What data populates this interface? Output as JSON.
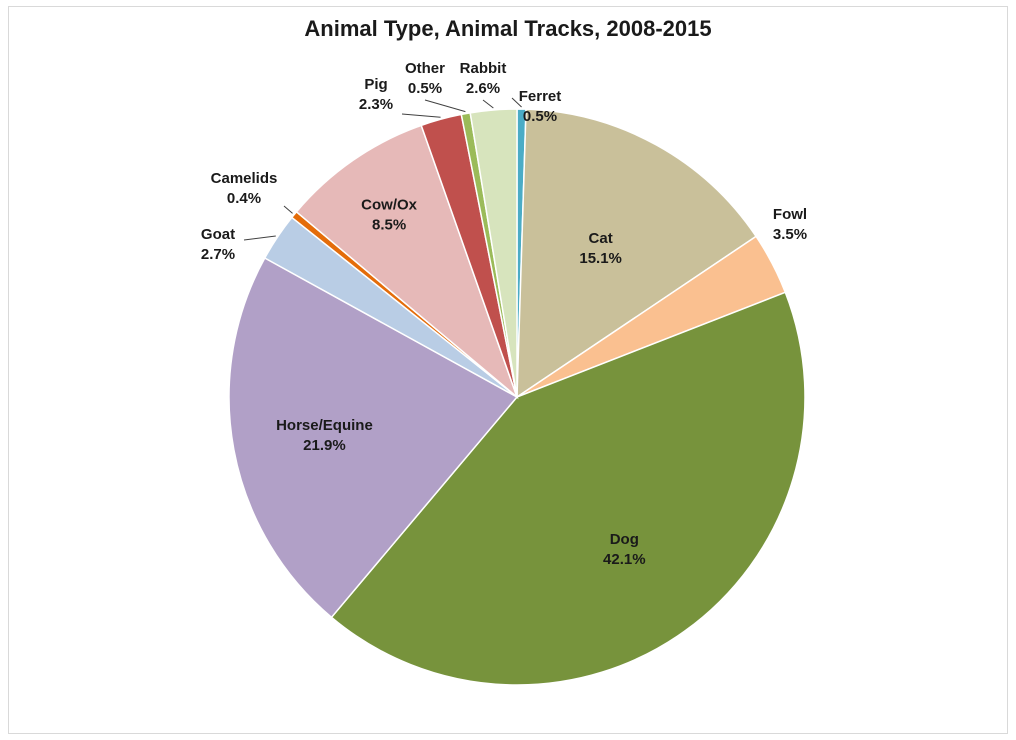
{
  "chart_data": {
    "type": "pie",
    "title": "Animal Type, Animal Tracks, 2008-2015",
    "slices": [
      {
        "label": "Ferret",
        "value": 0.5,
        "display": "0.5%",
        "color": "#4bacc6"
      },
      {
        "label": "Cat",
        "value": 15.1,
        "display": "15.1%",
        "color": "#c9c09a"
      },
      {
        "label": "Fowl",
        "value": 3.5,
        "display": "3.5%",
        "color": "#fac090"
      },
      {
        "label": "Dog",
        "value": 42.1,
        "display": "42.1%",
        "color": "#77933c"
      },
      {
        "label": "Horse/Equine",
        "value": 21.9,
        "display": "21.9%",
        "color": "#b1a0c7"
      },
      {
        "label": "Goat",
        "value": 2.7,
        "display": "2.7%",
        "color": "#b9cde5"
      },
      {
        "label": "Camelids",
        "value": 0.4,
        "display": "0.4%",
        "color": "#e46c0a"
      },
      {
        "label": "Cow/Ox",
        "value": 8.5,
        "display": "8.5%",
        "color": "#e6b9b8"
      },
      {
        "label": "Pig",
        "value": 2.3,
        "display": "2.3%",
        "color": "#c0504d"
      },
      {
        "label": "Other",
        "value": 0.5,
        "display": "0.5%",
        "color": "#9bbb59"
      },
      {
        "label": "Rabbit",
        "value": 2.6,
        "display": "2.6%",
        "color": "#d7e4bd"
      }
    ]
  }
}
